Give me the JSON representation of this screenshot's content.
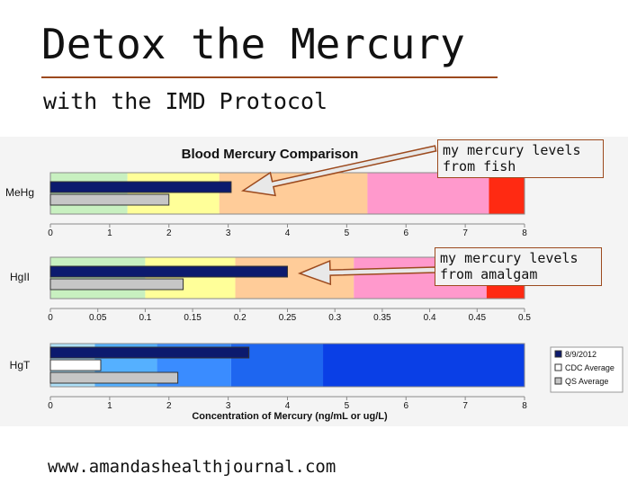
{
  "header": {
    "title": "Detox the Mercury",
    "subtitle": "with the IMD Protocol"
  },
  "footer": {
    "url": "www.amandashealthjournal.com"
  },
  "callouts": [
    {
      "text": "my mercury levels\nfrom fish"
    },
    {
      "text": "my mercury levels\nfrom amalgam"
    }
  ],
  "chart_data": {
    "type": "bar",
    "orientation": "horizontal",
    "title": "Blood Mercury Comparison",
    "xlabel": "Concentration of Mercury (ng/mL or ug/L)",
    "legend": {
      "placement": "right",
      "entries": [
        "8/9/2012",
        "CDC Average",
        "QS Average"
      ]
    },
    "series_colors": {
      "8/9/2012": "#0c1a6e",
      "CDC Average": "#ffffff",
      "QS Average": "#c6c6c6"
    },
    "panels": [
      {
        "label": "MeHg",
        "xlim": [
          0,
          8
        ],
        "ticks": [
          "0",
          "1",
          "2",
          "3",
          "4",
          "5",
          "6",
          "7",
          "8"
        ],
        "tick_values": [
          0,
          1,
          2,
          3,
          4,
          5,
          6,
          7,
          8
        ],
        "bands": [
          {
            "from": 0,
            "to": 1.3,
            "color": "#c8f0c0"
          },
          {
            "from": 1.3,
            "to": 2.85,
            "color": "#ffff99"
          },
          {
            "from": 2.85,
            "to": 5.35,
            "color": "#ffcc99"
          },
          {
            "from": 5.35,
            "to": 7.4,
            "color": "#ff99cc"
          },
          {
            "from": 7.4,
            "to": 8,
            "color": "#ff2a12"
          }
        ],
        "series": [
          {
            "name": "8/9/2012",
            "value": 3.05
          },
          {
            "name": "QS Average",
            "value": 2.0
          }
        ]
      },
      {
        "label": "HgII",
        "xlim": [
          0,
          0.5
        ],
        "ticks": [
          "0",
          "0.05",
          "0.1",
          "0.15",
          "0.2",
          "0.25",
          "0.3",
          "0.35",
          "0.4",
          "0.45",
          "0.5"
        ],
        "tick_values": [
          0,
          0.05,
          0.1,
          0.15,
          0.2,
          0.25,
          0.3,
          0.35,
          0.4,
          0.45,
          0.5
        ],
        "bands": [
          {
            "from": 0,
            "to": 0.1,
            "color": "#c8f0c0"
          },
          {
            "from": 0.1,
            "to": 0.195,
            "color": "#ffff99"
          },
          {
            "from": 0.195,
            "to": 0.32,
            "color": "#ffcc99"
          },
          {
            "from": 0.32,
            "to": 0.46,
            "color": "#ff99cc"
          },
          {
            "from": 0.46,
            "to": 0.5,
            "color": "#ff2a12"
          }
        ],
        "series": [
          {
            "name": "8/9/2012",
            "value": 0.25
          },
          {
            "name": "QS Average",
            "value": 0.14
          }
        ]
      },
      {
        "label": "HgT",
        "xlim": [
          0,
          8
        ],
        "ticks": [
          "0",
          "1",
          "2",
          "3",
          "4",
          "5",
          "6",
          "7",
          "8"
        ],
        "tick_values": [
          0,
          1,
          2,
          3,
          4,
          5,
          6,
          7,
          8
        ],
        "bands": [
          {
            "from": 0,
            "to": 0.75,
            "color": "#aee0f8"
          },
          {
            "from": 0.75,
            "to": 1.8,
            "color": "#55b0ff"
          },
          {
            "from": 1.8,
            "to": 3.05,
            "color": "#3a8cff"
          },
          {
            "from": 3.05,
            "to": 4.6,
            "color": "#1e66f0"
          },
          {
            "from": 4.6,
            "to": 8,
            "color": "#0a3fe6"
          }
        ],
        "series": [
          {
            "name": "8/9/2012",
            "value": 3.35
          },
          {
            "name": "CDC Average",
            "value": 0.85
          },
          {
            "name": "QS Average",
            "value": 2.15
          }
        ]
      }
    ]
  }
}
